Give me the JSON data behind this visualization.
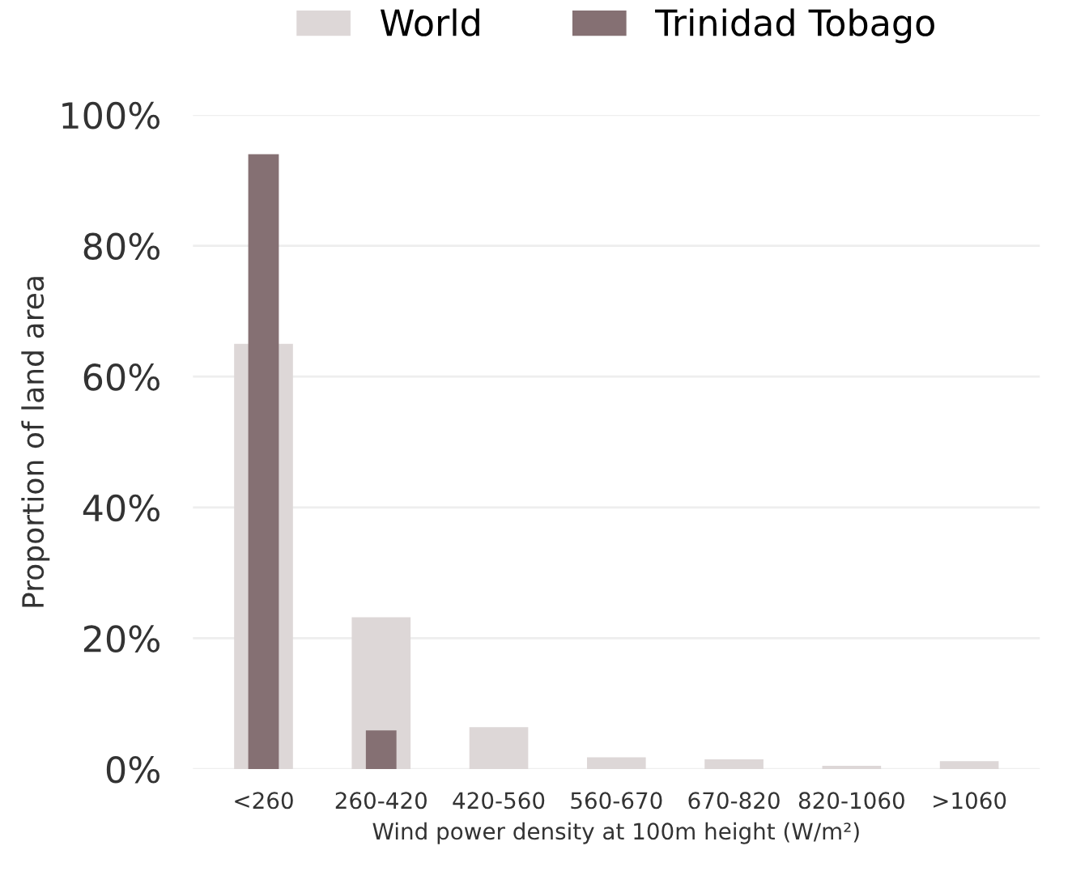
{
  "chart_data": {
    "type": "bar",
    "xlabel": "Wind power density at 100m height (W/m²)",
    "ylabel": "Proportion of land area",
    "categories": [
      "<260",
      "260-420",
      "420-560",
      "560-670",
      "670-820",
      "820-1060",
      ">1060"
    ],
    "series": [
      {
        "name": "World",
        "color": "#ddd7d7",
        "values": [
          65.0,
          23.2,
          6.4,
          1.8,
          1.5,
          0.5,
          1.2
        ]
      },
      {
        "name": "Trinidad Tobago",
        "color": "#857073",
        "values": [
          94.0,
          5.9,
          null,
          null,
          null,
          null,
          null
        ]
      }
    ],
    "ylim": [
      0,
      100
    ],
    "yticks": [
      {
        "value": 0,
        "label": "0%"
      },
      {
        "value": 20,
        "label": "20%"
      },
      {
        "value": 40,
        "label": "40%"
      },
      {
        "value": 60,
        "label": "60%"
      },
      {
        "value": 80,
        "label": "80%"
      },
      {
        "value": 100,
        "label": "100%"
      }
    ],
    "grid": "y",
    "legend": "top"
  }
}
